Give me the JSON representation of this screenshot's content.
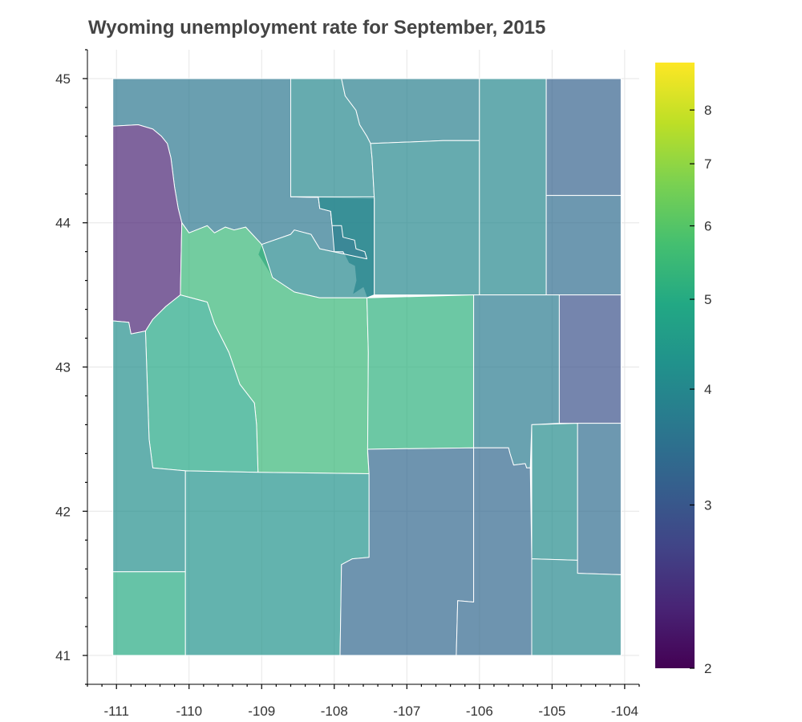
{
  "chart_data": {
    "type": "heatmap",
    "title": "Wyoming unemployment rate for September, 2015",
    "xlabel": "",
    "ylabel": "",
    "xlim": [
      -111.4,
      -103.8
    ],
    "ylim": [
      40.8,
      45.2
    ],
    "x_ticks": [
      -111,
      -110,
      -109,
      -108,
      -107,
      -106,
      -105,
      -104
    ],
    "y_ticks": [
      41,
      42,
      43,
      44,
      45
    ],
    "grid": true,
    "colorbar": {
      "palette": "Viridis",
      "scale": "log",
      "range": [
        2,
        9
      ],
      "ticks": [
        2,
        3,
        4,
        5,
        6,
        7,
        8
      ]
    },
    "regions": [
      {
        "id": "park",
        "value": 3.6,
        "outline": [
          [
            -111.05,
            45
          ],
          [
            -108.6,
            45
          ],
          [
            -108.6,
            44.18
          ],
          [
            -108.22,
            44.18
          ],
          [
            -108.2,
            44.1
          ],
          [
            -108.05,
            44.08
          ],
          [
            -108.03,
            43.98
          ],
          [
            -107.9,
            43.98
          ],
          [
            -107.88,
            43.9
          ],
          [
            -107.72,
            43.88
          ],
          [
            -107.7,
            43.82
          ],
          [
            -107.58,
            43.8
          ],
          [
            -107.55,
            43.75
          ],
          [
            -108.2,
            43.82
          ],
          [
            -108.32,
            43.92
          ],
          [
            -108.55,
            43.95
          ],
          [
            -108.6,
            43.92
          ],
          [
            -109.0,
            43.85
          ],
          [
            -109.22,
            43.97
          ],
          [
            -109.38,
            43.95
          ],
          [
            -109.5,
            43.97
          ],
          [
            -109.65,
            43.93
          ],
          [
            -109.75,
            43.98
          ],
          [
            -110.0,
            43.93
          ],
          [
            -110.1,
            44.0
          ],
          [
            -110.15,
            44.1
          ],
          [
            -110.2,
            44.25
          ],
          [
            -110.25,
            44.45
          ],
          [
            -110.3,
            44.55
          ],
          [
            -110.38,
            44.6
          ],
          [
            -110.5,
            44.65
          ],
          [
            -110.7,
            44.68
          ],
          [
            -111.05,
            44.67
          ]
        ]
      },
      {
        "id": "big-horn",
        "value": 4.0,
        "outline": [
          [
            -108.6,
            45
          ],
          [
            -107.9,
            45
          ],
          [
            -107.85,
            44.88
          ],
          [
            -107.7,
            44.78
          ],
          [
            -107.65,
            44.68
          ],
          [
            -107.55,
            44.6
          ],
          [
            -107.5,
            44.55
          ],
          [
            -107.48,
            44.45
          ],
          [
            -107.45,
            44.18
          ],
          [
            -107.45,
            44.17
          ],
          [
            -108.6,
            44.18
          ]
        ]
      },
      {
        "id": "sheridan",
        "value": 3.8,
        "outline": [
          [
            -107.9,
            45
          ],
          [
            -106.0,
            45
          ],
          [
            -106.0,
            44.57
          ],
          [
            -106.5,
            44.57
          ],
          [
            -107.5,
            44.55
          ],
          [
            -107.55,
            44.6
          ],
          [
            -107.65,
            44.68
          ],
          [
            -107.7,
            44.78
          ],
          [
            -107.85,
            44.88
          ]
        ]
      },
      {
        "id": "johnson",
        "value": 4.0,
        "outline": [
          [
            -107.5,
            44.55
          ],
          [
            -106.5,
            44.57
          ],
          [
            -106.0,
            44.57
          ],
          [
            -106.0,
            43.5
          ],
          [
            -107.45,
            43.5
          ],
          [
            -107.45,
            44.18
          ],
          [
            -107.48,
            44.45
          ]
        ]
      },
      {
        "id": "washakie",
        "value": 3.8,
        "outline": [
          [
            -108.6,
            44.18
          ],
          [
            -107.45,
            44.17
          ],
          [
            -107.45,
            43.5
          ],
          [
            -107.55,
            43.48
          ],
          [
            -107.6,
            43.55
          ],
          [
            -107.75,
            43.5
          ],
          [
            -107.7,
            43.6
          ],
          [
            -107.72,
            43.7
          ],
          [
            -107.8,
            43.72
          ],
          [
            -107.88,
            43.8
          ],
          [
            -108.0,
            43.8
          ],
          [
            -108.03,
            43.98
          ],
          [
            -108.05,
            44.08
          ],
          [
            -108.2,
            44.1
          ],
          [
            -108.22,
            44.18
          ]
        ]
      },
      {
        "id": "hot-springs",
        "value": 4.0,
        "outline": [
          [
            -108.6,
            44.18
          ],
          [
            -108.22,
            44.18
          ],
          [
            -108.2,
            44.1
          ],
          [
            -108.05,
            44.08
          ],
          [
            -108.03,
            43.98
          ],
          [
            -107.9,
            43.98
          ],
          [
            -107.88,
            43.9
          ],
          [
            -107.72,
            43.88
          ],
          [
            -107.7,
            43.82
          ],
          [
            -107.58,
            43.8
          ],
          [
            -107.55,
            43.75
          ],
          [
            -108.2,
            43.82
          ],
          [
            -108.32,
            43.92
          ],
          [
            -108.55,
            43.95
          ],
          [
            -108.6,
            43.92
          ],
          [
            -109.0,
            43.85
          ],
          [
            -109.05,
            43.78
          ],
          [
            -108.85,
            43.62
          ],
          [
            -108.55,
            43.52
          ],
          [
            -108.2,
            43.48
          ],
          [
            -107.55,
            43.48
          ],
          [
            -107.45,
            43.5
          ],
          [
            -107.45,
            44.17
          ],
          [
            -107.45,
            44.18
          ],
          [
            -108.3,
            44.18
          ]
        ]
      },
      {
        "id": "teton",
        "value": 2.3,
        "outline": [
          [
            -111.05,
            44.67
          ],
          [
            -110.7,
            44.68
          ],
          [
            -110.5,
            44.65
          ],
          [
            -110.38,
            44.6
          ],
          [
            -110.3,
            44.55
          ],
          [
            -110.25,
            44.45
          ],
          [
            -110.2,
            44.25
          ],
          [
            -110.15,
            44.1
          ],
          [
            -110.1,
            44.0
          ],
          [
            -110.12,
            43.5
          ],
          [
            -110.32,
            43.42
          ],
          [
            -110.5,
            43.33
          ],
          [
            -110.6,
            43.25
          ],
          [
            -110.8,
            43.23
          ],
          [
            -110.83,
            43.31
          ],
          [
            -111.05,
            43.32
          ]
        ]
      },
      {
        "id": "fremont",
        "value": 5.4,
        "outline": [
          [
            -110.1,
            44.0
          ],
          [
            -110.0,
            43.93
          ],
          [
            -109.75,
            43.98
          ],
          [
            -109.65,
            43.93
          ],
          [
            -109.5,
            43.97
          ],
          [
            -109.38,
            43.95
          ],
          [
            -109.22,
            43.97
          ],
          [
            -109.0,
            43.85
          ],
          [
            -108.85,
            43.62
          ],
          [
            -108.55,
            43.52
          ],
          [
            -108.2,
            43.48
          ],
          [
            -107.55,
            43.48
          ],
          [
            -107.53,
            43.1
          ],
          [
            -107.54,
            42.4
          ],
          [
            -107.52,
            42.26
          ],
          [
            -109.05,
            42.27
          ],
          [
            -109.07,
            42.6
          ],
          [
            -109.1,
            42.75
          ],
          [
            -109.3,
            42.88
          ],
          [
            -109.45,
            43.1
          ],
          [
            -109.65,
            43.3
          ],
          [
            -109.75,
            43.45
          ],
          [
            -110.12,
            43.5
          ]
        ]
      },
      {
        "id": "sublette",
        "value": 4.9,
        "outline": [
          [
            -110.12,
            43.5
          ],
          [
            -109.75,
            43.45
          ],
          [
            -109.65,
            43.3
          ],
          [
            -109.45,
            43.1
          ],
          [
            -109.3,
            42.88
          ],
          [
            -109.1,
            42.75
          ],
          [
            -109.07,
            42.6
          ],
          [
            -109.05,
            42.27
          ],
          [
            -110.05,
            42.28
          ],
          [
            -110.5,
            42.3
          ],
          [
            -110.55,
            42.5
          ],
          [
            -110.6,
            43.25
          ],
          [
            -110.5,
            43.33
          ],
          [
            -110.32,
            43.42
          ]
        ]
      },
      {
        "id": "lincoln",
        "value": 4.2,
        "outline": [
          [
            -111.05,
            43.32
          ],
          [
            -110.83,
            43.31
          ],
          [
            -110.8,
            43.23
          ],
          [
            -110.6,
            43.25
          ],
          [
            -110.55,
            42.5
          ],
          [
            -110.5,
            42.3
          ],
          [
            -110.05,
            42.28
          ],
          [
            -110.05,
            41.58
          ],
          [
            -111.05,
            41.58
          ]
        ]
      },
      {
        "id": "uinta",
        "value": 5.0,
        "outline": [
          [
            -111.05,
            41.58
          ],
          [
            -110.05,
            41.58
          ],
          [
            -110.05,
            41.0
          ],
          [
            -111.05,
            41.0
          ]
        ]
      },
      {
        "id": "sweetwater",
        "value": 4.3,
        "outline": [
          [
            -110.05,
            42.28
          ],
          [
            -109.05,
            42.27
          ],
          [
            -107.52,
            42.26
          ],
          [
            -107.52,
            41.68
          ],
          [
            -107.75,
            41.67
          ],
          [
            -107.9,
            41.63
          ],
          [
            -107.92,
            41.0
          ],
          [
            -110.05,
            41.0
          ]
        ]
      },
      {
        "id": "natrona",
        "value": 5.2,
        "outline": [
          [
            -107.55,
            43.48
          ],
          [
            -106.08,
            43.5
          ],
          [
            -106.08,
            42.44
          ],
          [
            -107.54,
            42.43
          ],
          [
            -107.53,
            43.1
          ]
        ]
      },
      {
        "id": "carbon",
        "value": 3.3,
        "outline": [
          [
            -107.54,
            42.43
          ],
          [
            -106.08,
            42.44
          ],
          [
            -106.08,
            41.37
          ],
          [
            -106.3,
            41.38
          ],
          [
            -106.32,
            41.0
          ],
          [
            -107.92,
            41.0
          ],
          [
            -107.9,
            41.63
          ],
          [
            -107.75,
            41.67
          ],
          [
            -107.52,
            41.68
          ],
          [
            -107.52,
            42.26
          ]
        ]
      },
      {
        "id": "campbell",
        "value": 4.0,
        "outline": [
          [
            -106.0,
            45
          ],
          [
            -105.08,
            45
          ],
          [
            -105.08,
            43.5
          ],
          [
            -106.0,
            43.5
          ]
        ]
      },
      {
        "id": "crook",
        "value": 3.2,
        "outline": [
          [
            -105.08,
            45
          ],
          [
            -104.05,
            45
          ],
          [
            -104.05,
            44.19
          ],
          [
            -105.08,
            44.19
          ]
        ]
      },
      {
        "id": "weston",
        "value": 3.4,
        "outline": [
          [
            -105.08,
            44.19
          ],
          [
            -104.05,
            44.19
          ],
          [
            -104.05,
            43.5
          ],
          [
            -105.08,
            43.5
          ]
        ]
      },
      {
        "id": "converse",
        "value": 3.7,
        "outline": [
          [
            -106.08,
            43.5
          ],
          [
            -104.9,
            43.5
          ],
          [
            -104.9,
            42.61
          ],
          [
            -105.28,
            42.6
          ],
          [
            -105.3,
            42.3
          ],
          [
            -105.35,
            42.3
          ],
          [
            -105.37,
            42.33
          ],
          [
            -105.53,
            42.32
          ],
          [
            -105.58,
            42.4
          ],
          [
            -105.6,
            42.44
          ],
          [
            -106.08,
            42.44
          ]
        ]
      },
      {
        "id": "niobrara",
        "value": 2.9,
        "outline": [
          [
            -104.9,
            43.5
          ],
          [
            -104.05,
            43.5
          ],
          [
            -104.05,
            42.61
          ],
          [
            -104.9,
            42.61
          ]
        ]
      },
      {
        "id": "goshen",
        "value": 3.4,
        "outline": [
          [
            -104.65,
            42.61
          ],
          [
            -104.05,
            42.61
          ],
          [
            -104.05,
            41.56
          ],
          [
            -104.65,
            41.57
          ]
        ]
      },
      {
        "id": "platte",
        "value": 4.1,
        "outline": [
          [
            -105.28,
            42.6
          ],
          [
            -104.65,
            42.61
          ],
          [
            -104.65,
            41.66
          ],
          [
            -105.28,
            41.67
          ]
        ]
      },
      {
        "id": "albany",
        "value": 3.3,
        "outline": [
          [
            -106.08,
            42.44
          ],
          [
            -105.6,
            42.44
          ],
          [
            -105.58,
            42.4
          ],
          [
            -105.53,
            42.32
          ],
          [
            -105.37,
            42.33
          ],
          [
            -105.35,
            42.3
          ],
          [
            -105.3,
            42.3
          ],
          [
            -105.28,
            41.67
          ],
          [
            -105.28,
            41.0
          ],
          [
            -106.32,
            41.0
          ],
          [
            -106.3,
            41.38
          ],
          [
            -106.08,
            41.37
          ]
        ]
      },
      {
        "id": "laramie",
        "value": 4.0,
        "outline": [
          [
            -105.28,
            41.67
          ],
          [
            -104.65,
            41.66
          ],
          [
            -104.65,
            41.57
          ],
          [
            -104.05,
            41.56
          ],
          [
            -104.05,
            41.0
          ],
          [
            -105.28,
            41.0
          ]
        ]
      }
    ]
  }
}
